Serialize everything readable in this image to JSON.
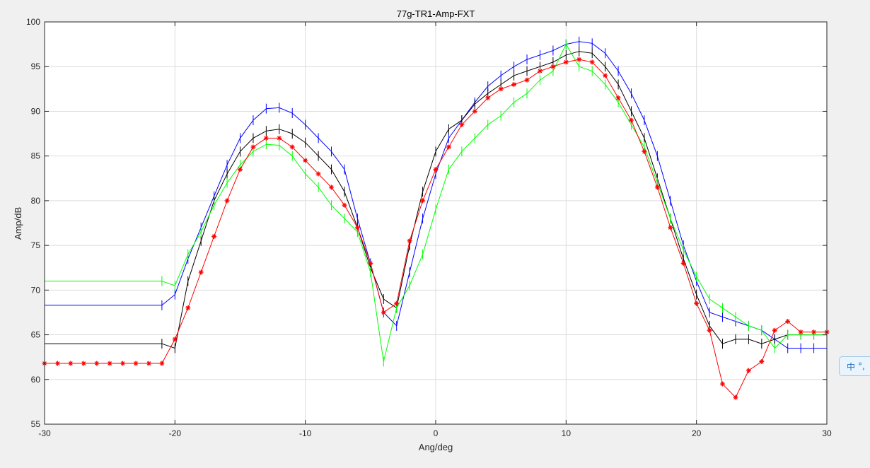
{
  "chart_data": {
    "type": "line",
    "title": "77g-TR1-Amp-FXT",
    "xlabel": "Ang/deg",
    "ylabel": "Amp/dB",
    "xlim": [
      -30,
      30
    ],
    "ylim": [
      55,
      100
    ],
    "xticks": [
      -30,
      -20,
      -10,
      0,
      10,
      20,
      30
    ],
    "yticks": [
      55,
      60,
      65,
      70,
      75,
      80,
      85,
      90,
      95,
      100
    ],
    "grid": true,
    "series": [
      {
        "color": "#0000ff",
        "x": [
          -30,
          -21,
          -20,
          -19,
          -18,
          -17,
          -16,
          -15,
          -14,
          -13,
          -12,
          -11,
          -10,
          -9,
          -8,
          -7,
          -6,
          -5,
          -4,
          -3,
          -2,
          -1,
          0,
          1,
          2,
          3,
          4,
          5,
          6,
          7,
          8,
          9,
          10,
          11,
          12,
          13,
          14,
          15,
          16,
          17,
          18,
          19,
          20,
          21,
          22,
          23,
          24,
          25,
          26,
          27,
          28,
          29,
          30
        ],
        "y": [
          68.3,
          68.3,
          69.5,
          73.5,
          77.0,
          80.5,
          84.0,
          87.0,
          89.0,
          90.3,
          90.4,
          89.8,
          88.5,
          87.0,
          85.5,
          83.5,
          78.0,
          73.0,
          67.5,
          66.0,
          72.0,
          78.0,
          83.0,
          87.0,
          89.0,
          91.0,
          92.8,
          94.0,
          95.0,
          95.8,
          96.3,
          96.8,
          97.5,
          97.8,
          97.6,
          96.5,
          94.5,
          92.0,
          89.0,
          85.0,
          80.0,
          75.0,
          71.0,
          67.5,
          67.0,
          66.5,
          66.0,
          65.5,
          64.5,
          63.5,
          63.5,
          63.5,
          63.5
        ]
      },
      {
        "color": "#000000",
        "x": [
          -30,
          -21,
          -20,
          -19,
          -18,
          -17,
          -16,
          -15,
          -14,
          -13,
          -12,
          -11,
          -10,
          -9,
          -8,
          -7,
          -6,
          -5,
          -4,
          -3,
          -2,
          -1,
          0,
          1,
          2,
          3,
          4,
          5,
          6,
          7,
          8,
          9,
          10,
          11,
          12,
          13,
          14,
          15,
          16,
          17,
          18,
          19,
          20,
          21,
          22,
          23,
          24,
          25,
          26,
          27,
          28,
          29,
          30
        ],
        "y": [
          64.0,
          64.0,
          63.5,
          71.0,
          75.5,
          80.0,
          83.0,
          85.5,
          87.0,
          87.8,
          88.0,
          87.5,
          86.5,
          85.0,
          83.5,
          81.0,
          77.0,
          72.5,
          69.0,
          68.0,
          75.0,
          81.0,
          85.5,
          88.0,
          89.0,
          90.8,
          92.0,
          93.0,
          94.0,
          94.5,
          95.0,
          95.5,
          96.3,
          96.7,
          96.5,
          95.0,
          93.0,
          90.0,
          87.0,
          82.5,
          78.0,
          73.5,
          69.5,
          66.0,
          64.0,
          64.5,
          64.5,
          64.0,
          64.5,
          65.0,
          65.0,
          65.0,
          65.0
        ]
      },
      {
        "color": "#00ff00",
        "x": [
          -30,
          -21,
          -20,
          -19,
          -18,
          -17,
          -16,
          -15,
          -14,
          -13,
          -12,
          -11,
          -10,
          -9,
          -8,
          -7,
          -6,
          -5,
          -4,
          -3,
          -2,
          -1,
          0,
          1,
          2,
          3,
          4,
          5,
          6,
          7,
          8,
          9,
          10,
          11,
          12,
          13,
          14,
          15,
          16,
          17,
          18,
          19,
          20,
          21,
          22,
          23,
          24,
          25,
          26,
          27,
          28,
          29,
          30
        ],
        "y": [
          71.0,
          71.0,
          70.5,
          74.0,
          76.5,
          79.5,
          82.0,
          84.0,
          85.5,
          86.3,
          86.2,
          85.0,
          83.0,
          81.5,
          79.5,
          78.0,
          76.5,
          72.0,
          62.0,
          68.0,
          70.5,
          74.0,
          79.0,
          83.5,
          85.5,
          87.0,
          88.5,
          89.5,
          91.0,
          92.0,
          93.5,
          94.5,
          97.5,
          95.0,
          94.5,
          93.0,
          91.0,
          88.5,
          86.0,
          82.0,
          78.0,
          74.5,
          71.5,
          69.0,
          68.0,
          67.0,
          66.0,
          65.5,
          63.5,
          65.0,
          65.0,
          65.0,
          65.0
        ]
      },
      {
        "color": "#ff0000",
        "x": [
          -30,
          -29,
          -28,
          -27,
          -26,
          -25,
          -24,
          -23,
          -22,
          -21,
          -20,
          -19,
          -18,
          -17,
          -16,
          -15,
          -14,
          -13,
          -12,
          -11,
          -10,
          -9,
          -8,
          -7,
          -6,
          -5,
          -4,
          -3,
          -2,
          -1,
          0,
          1,
          2,
          3,
          4,
          5,
          6,
          7,
          8,
          9,
          10,
          11,
          12,
          13,
          14,
          15,
          16,
          17,
          18,
          19,
          20,
          21,
          22,
          23,
          24,
          25,
          26,
          27,
          28,
          29,
          30
        ],
        "y": [
          61.8,
          61.8,
          61.8,
          61.8,
          61.8,
          61.8,
          61.8,
          61.8,
          61.8,
          61.8,
          64.5,
          68.0,
          72.0,
          76.0,
          80.0,
          83.5,
          86.0,
          87.0,
          87.0,
          86.0,
          84.5,
          83.0,
          81.5,
          79.5,
          77.0,
          73.0,
          67.5,
          68.5,
          75.5,
          80.0,
          83.5,
          86.0,
          88.5,
          90.0,
          91.5,
          92.5,
          93.0,
          93.5,
          94.5,
          95.0,
          95.5,
          95.8,
          95.5,
          94.0,
          91.5,
          89.0,
          85.5,
          81.5,
          77.0,
          73.0,
          68.5,
          65.5,
          59.5,
          58.0,
          61.0,
          62.0,
          65.5,
          66.5,
          65.3,
          65.3,
          65.3
        ]
      }
    ]
  },
  "ime": {
    "char": "中",
    "extra": "°,"
  }
}
